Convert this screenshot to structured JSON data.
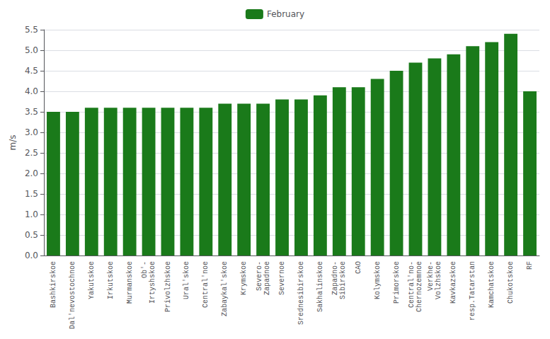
{
  "chart_data": {
    "type": "bar",
    "ylabel": "m/s",
    "categories": [
      "Bashkirskoe",
      "Dal'nevostochnoe",
      "Yakutskoe",
      "Irkutskoe",
      "Murmanskoe",
      "Ob'-\nIrtyshskoe",
      "Privolzhskoe",
      "Ural'skoe",
      "Central'noe",
      "Zabaykal'skoe",
      "Krymskoe",
      "Severo-\nZapadnoe",
      "Severnoe",
      "Srednesibirskoe",
      "Sakhalinskoe",
      "Zapadno-\nSibirskoe",
      "CAO",
      "Kolymskoe",
      "Primorskoe",
      "Central'no-\nChernozemnoe",
      "Verkhe-\nVolzhskoe",
      "Kavkazskoe",
      "resp.Tatarstan",
      "Kamchatskoe",
      "Chukotskoe",
      "RF"
    ],
    "series": [
      {
        "name": "February",
        "color": "#1a7a1a",
        "values": [
          3.5,
          3.5,
          3.6,
          3.6,
          3.6,
          3.6,
          3.6,
          3.6,
          3.6,
          3.7,
          3.7,
          3.7,
          3.8,
          3.8,
          3.9,
          4.1,
          4.1,
          4.3,
          4.5,
          4.7,
          4.8,
          4.9,
          5.1,
          5.2,
          5.4,
          4.0
        ]
      }
    ],
    "ylim": [
      0,
      5.5
    ],
    "yticks": [
      {
        "value": 0,
        "label": "0.0"
      },
      0.5,
      {
        "value": 1,
        "label": "1.0"
      },
      1.5,
      {
        "value": 2,
        "label": "2.0"
      },
      2.5,
      {
        "value": 3,
        "label": "3.0"
      },
      3.5,
      {
        "value": 4,
        "label": "4.0"
      },
      4.5,
      {
        "value": 5,
        "label": "5.0"
      },
      5.5
    ],
    "grid": true,
    "legend": "top"
  }
}
